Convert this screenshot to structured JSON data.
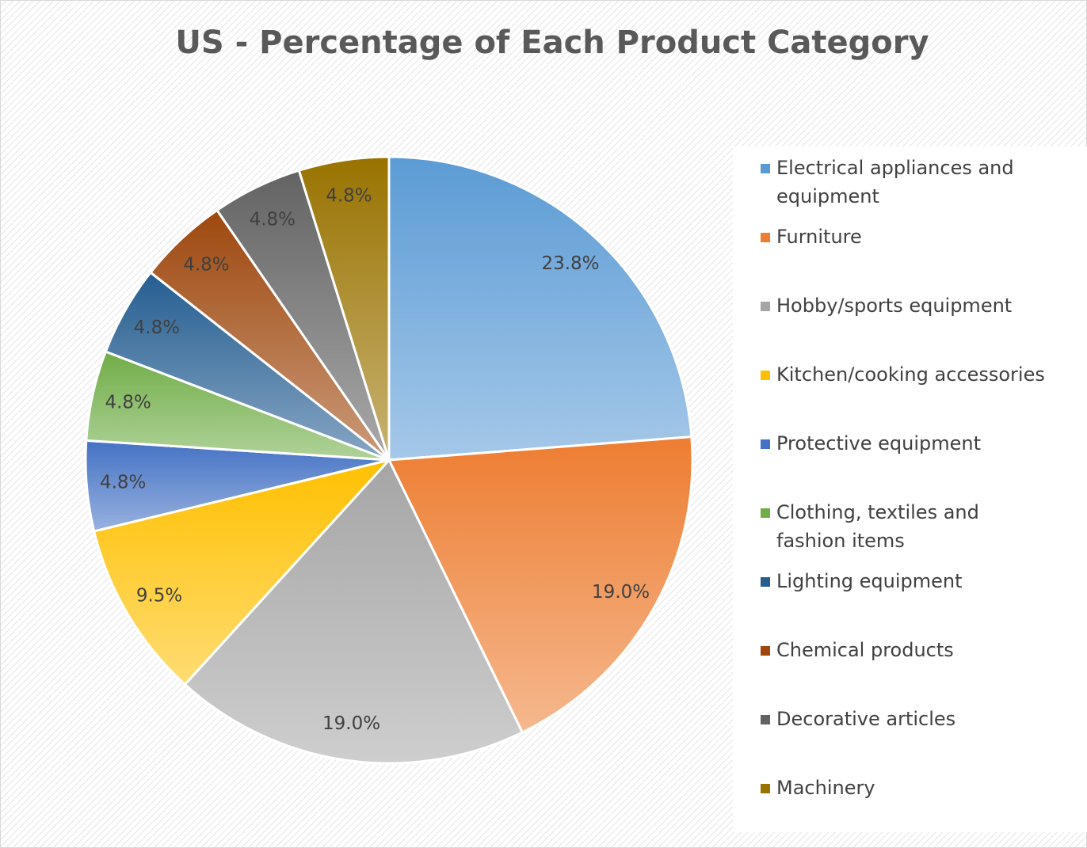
{
  "chart_data": {
    "type": "pie",
    "title": "US - Percentage of Each Product Category",
    "categories": [
      "Electrical appliances and equipment",
      "Furniture",
      "Hobby/sports equipment",
      "Kitchen/cooking accessories",
      "Protective equipment",
      "Clothing, textiles and fashion items",
      "Lighting equipment",
      "Chemical products",
      "Decorative articles",
      "Machinery"
    ],
    "values": [
      23.8,
      19.0,
      19.0,
      9.5,
      4.8,
      4.8,
      4.8,
      4.8,
      4.8,
      4.8
    ],
    "value_labels": [
      "23.8%",
      "19.0%",
      "19.0%",
      "9.5%",
      "4.8%",
      "4.8%",
      "4.8%",
      "4.8%",
      "4.8%",
      "4.8%"
    ],
    "colors": [
      "#5b9bd5",
      "#ed7d31",
      "#a5a5a5",
      "#ffc000",
      "#4472c4",
      "#70ad47",
      "#255e91",
      "#9e480e",
      "#636363",
      "#997300"
    ],
    "legend": "right"
  }
}
